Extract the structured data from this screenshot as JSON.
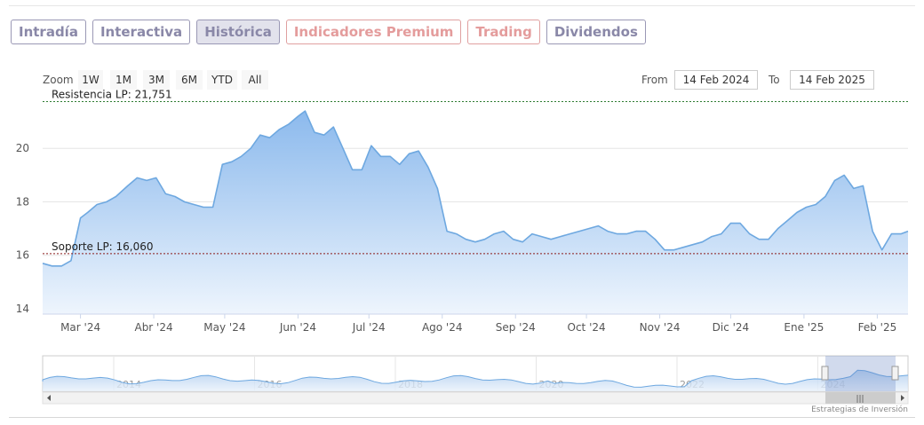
{
  "tabs": [
    {
      "label": "Intradía",
      "active": false,
      "premium": false
    },
    {
      "label": "Interactiva",
      "active": false,
      "premium": false
    },
    {
      "label": "Histórica",
      "active": true,
      "premium": false
    },
    {
      "label": "Indicadores Premium",
      "active": false,
      "premium": true
    },
    {
      "label": "Trading",
      "active": false,
      "premium": true
    },
    {
      "label": "Dividendos",
      "active": false,
      "premium": false
    }
  ],
  "range_selector": {
    "zoom_label": "Zoom",
    "buttons": [
      "1W",
      "1M",
      "3M",
      "6M",
      "YTD",
      "All"
    ],
    "from_label": "From",
    "from_value": "14 Feb 2024",
    "to_label": "To",
    "to_value": "14 Feb 2025"
  },
  "credit": "Estrategias de Inversión",
  "colors": {
    "line": "#6ea8e0",
    "fill_top": "#86b6ec",
    "fill_bottom": "#eef5fd",
    "resistance_line": "#2e7d32",
    "support_line": "#8b1a1a",
    "tab_border": "#9a98b5",
    "premium_border": "#e0a0a0"
  },
  "chart_data": {
    "type": "area",
    "y_ticks": [
      14,
      16,
      18,
      20
    ],
    "ylim": [
      13.8,
      21.9
    ],
    "x_ticks": [
      "Mar '24",
      "Abr '24",
      "May '24",
      "Jun '24",
      "Jul '24",
      "Ago '24",
      "Sep '24",
      "Oct '24",
      "Nov '24",
      "Dic '24",
      "Ene '25",
      "Feb '25"
    ],
    "reference_lines": [
      {
        "label": "Resistencia LP: 21,751",
        "value": 21.751
      },
      {
        "label": "Soporte LP: 16,060",
        "value": 16.06
      }
    ],
    "x_start": "2024-02-14",
    "x_end": "2025-02-14",
    "series": [
      {
        "x": [
          "2024-02-14",
          "2024-02-18",
          "2024-02-22",
          "2024-02-26",
          "2024-03-01",
          "2024-03-04",
          "2024-03-08",
          "2024-03-12",
          "2024-03-16",
          "2024-03-21",
          "2024-03-25",
          "2024-03-29",
          "2024-04-02",
          "2024-04-06",
          "2024-04-10",
          "2024-04-14",
          "2024-04-18",
          "2024-04-22",
          "2024-04-26",
          "2024-04-30",
          "2024-05-04",
          "2024-05-08",
          "2024-05-12",
          "2024-05-16",
          "2024-05-20",
          "2024-05-24",
          "2024-05-28",
          "2024-06-01",
          "2024-06-04",
          "2024-06-08",
          "2024-06-12",
          "2024-06-16",
          "2024-06-20",
          "2024-06-24",
          "2024-06-28",
          "2024-07-02",
          "2024-07-06",
          "2024-07-10",
          "2024-07-14",
          "2024-07-18",
          "2024-07-22",
          "2024-07-26",
          "2024-07-30",
          "2024-08-03",
          "2024-08-07",
          "2024-08-11",
          "2024-08-15",
          "2024-08-19",
          "2024-08-23",
          "2024-08-27",
          "2024-08-31",
          "2024-09-04",
          "2024-09-08",
          "2024-09-12",
          "2024-09-16",
          "2024-09-20",
          "2024-09-24",
          "2024-09-28",
          "2024-10-02",
          "2024-10-06",
          "2024-10-10",
          "2024-10-14",
          "2024-10-18",
          "2024-10-22",
          "2024-10-26",
          "2024-10-30",
          "2024-11-03",
          "2024-11-07",
          "2024-11-11",
          "2024-11-15",
          "2024-11-19",
          "2024-11-23",
          "2024-11-27",
          "2024-12-01",
          "2024-12-05",
          "2024-12-09",
          "2024-12-13",
          "2024-12-17",
          "2024-12-21",
          "2024-12-25",
          "2024-12-29",
          "2025-01-02",
          "2025-01-06",
          "2025-01-10",
          "2025-01-14",
          "2025-01-18",
          "2025-01-22",
          "2025-01-26",
          "2025-01-30",
          "2025-02-03",
          "2025-02-07",
          "2025-02-11",
          "2025-02-14"
        ],
        "values": [
          15.7,
          15.6,
          15.6,
          15.8,
          17.4,
          17.6,
          17.9,
          18.0,
          18.2,
          18.6,
          18.9,
          18.8,
          18.9,
          18.3,
          18.2,
          18.0,
          17.9,
          17.8,
          17.8,
          19.4,
          19.5,
          19.7,
          20.0,
          20.5,
          20.4,
          20.7,
          20.9,
          21.2,
          21.4,
          20.6,
          20.5,
          20.8,
          20.0,
          19.2,
          19.2,
          20.1,
          19.7,
          19.7,
          19.4,
          19.8,
          19.9,
          19.3,
          18.5,
          16.9,
          16.8,
          16.6,
          16.5,
          16.6,
          16.8,
          16.9,
          16.6,
          16.5,
          16.8,
          16.7,
          16.6,
          16.7,
          16.8,
          16.9,
          17.0,
          17.1,
          16.9,
          16.8,
          16.8,
          16.9,
          16.9,
          16.6,
          16.2,
          16.2,
          16.3,
          16.4,
          16.5,
          16.7,
          16.8,
          17.2,
          17.2,
          16.8,
          16.6,
          16.6,
          17.0,
          17.3,
          17.6,
          17.8,
          17.9,
          18.2,
          18.8,
          19.0,
          18.5,
          18.6,
          16.9,
          16.2,
          16.8,
          16.8,
          16.9
        ]
      }
    ],
    "navigator": {
      "x_ticks": [
        "2014",
        "2016",
        "2018",
        "2020",
        "2022",
        "2024"
      ]
    }
  }
}
